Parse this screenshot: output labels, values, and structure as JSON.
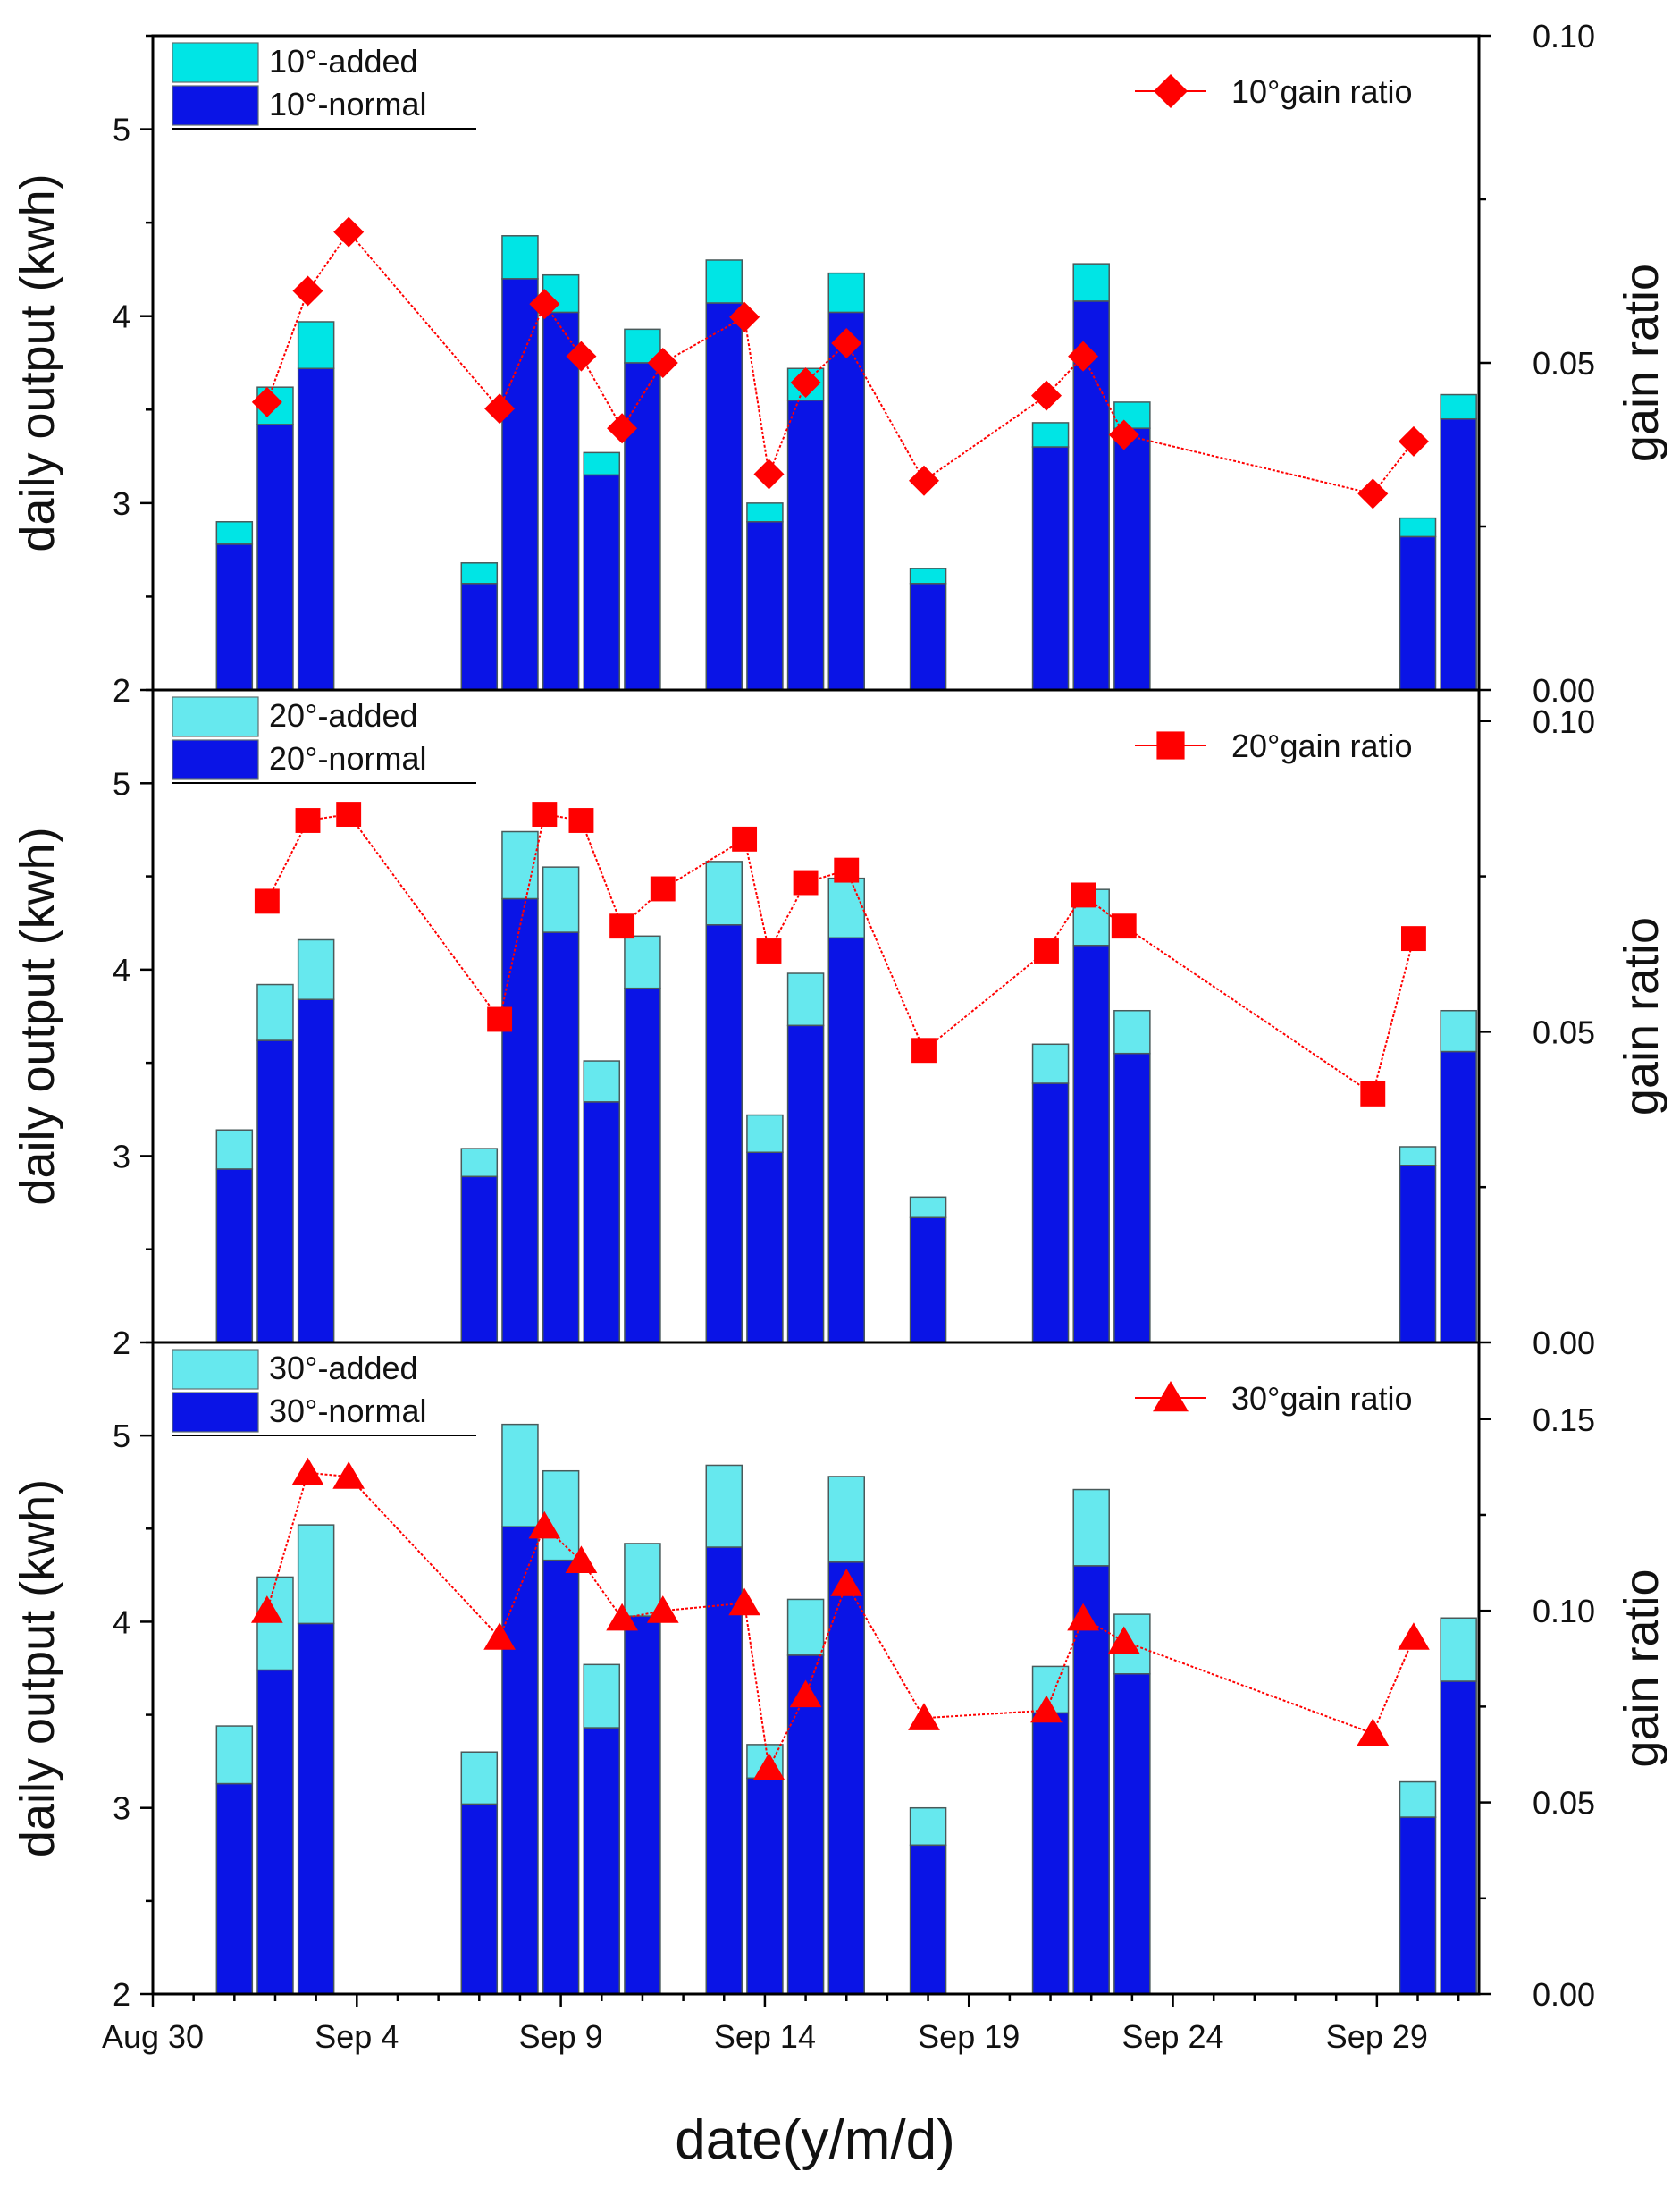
{
  "figure": {
    "xlabel": "date(y/m/d)",
    "x_ticks": [
      {
        "day": 0,
        "label": "Aug 30"
      },
      {
        "day": 5,
        "label": "Sep 4"
      },
      {
        "day": 10,
        "label": "Sep 9"
      },
      {
        "day": 15,
        "label": "Sep 14"
      },
      {
        "day": 20,
        "label": "Sep 19"
      },
      {
        "day": 25,
        "label": "Sep 24"
      },
      {
        "day": 30,
        "label": "Sep 29"
      }
    ],
    "xlim": [
      0,
      32.5
    ],
    "colors": {
      "added_10": "#00e5e5",
      "added": "#66e8ee",
      "normal": "#0a14e6",
      "ratio": "#ff0000",
      "bar_edge": "#4a5a5a"
    }
  },
  "chart_data": [
    {
      "type": "bar",
      "panel": "10°",
      "stacked": true,
      "ylabel": "daily output (kwh)",
      "y2label": "gain ratio",
      "ylim": [
        2,
        5.5
      ],
      "y_ticks": [
        "2",
        "3",
        "4",
        "5"
      ],
      "y2lim": [
        0,
        0.1
      ],
      "y2_ticks": [
        "0.00",
        "0.05",
        "0.10"
      ],
      "legend": {
        "added": "10°-added",
        "normal": "10°-normal",
        "ratio": "10°gain ratio"
      },
      "ratio_marker": "diamond",
      "bars": [
        {
          "day": 2,
          "normal": 2.78,
          "total": 2.9
        },
        {
          "day": 3,
          "normal": 3.42,
          "total": 3.62
        },
        {
          "day": 4,
          "normal": 3.72,
          "total": 3.97
        },
        {
          "day": 8,
          "normal": 2.57,
          "total": 2.68
        },
        {
          "day": 9,
          "normal": 4.2,
          "total": 4.43
        },
        {
          "day": 10,
          "normal": 4.02,
          "total": 4.22
        },
        {
          "day": 11,
          "normal": 3.15,
          "total": 3.27
        },
        {
          "day": 12,
          "normal": 3.75,
          "total": 3.93
        },
        {
          "day": 14,
          "normal": 4.07,
          "total": 4.3
        },
        {
          "day": 15,
          "normal": 2.9,
          "total": 3.0
        },
        {
          "day": 16,
          "normal": 3.55,
          "total": 3.72
        },
        {
          "day": 17,
          "normal": 4.02,
          "total": 4.23
        },
        {
          "day": 19,
          "normal": 2.57,
          "total": 2.65
        },
        {
          "day": 22,
          "normal": 3.3,
          "total": 3.43
        },
        {
          "day": 23,
          "normal": 4.08,
          "total": 4.28
        },
        {
          "day": 24,
          "normal": 3.4,
          "total": 3.54
        },
        {
          "day": 31,
          "normal": 2.82,
          "total": 2.92
        },
        {
          "day": 32,
          "normal": 3.45,
          "total": 3.58
        }
      ],
      "ratio": [
        {
          "day": 2.8,
          "value": 0.044
        },
        {
          "day": 3.8,
          "value": 0.061
        },
        {
          "day": 4.8,
          "value": 0.07
        },
        {
          "day": 8.5,
          "value": 0.043
        },
        {
          "day": 9.6,
          "value": 0.059
        },
        {
          "day": 10.5,
          "value": 0.051
        },
        {
          "day": 11.5,
          "value": 0.04
        },
        {
          "day": 12.5,
          "value": 0.05
        },
        {
          "day": 14.5,
          "value": 0.057
        },
        {
          "day": 15.1,
          "value": 0.033
        },
        {
          "day": 16.0,
          "value": 0.047
        },
        {
          "day": 17.0,
          "value": 0.053
        },
        {
          "day": 18.9,
          "value": 0.032
        },
        {
          "day": 21.9,
          "value": 0.045
        },
        {
          "day": 22.8,
          "value": 0.051
        },
        {
          "day": 23.8,
          "value": 0.039
        },
        {
          "day": 29.9,
          "value": 0.03
        },
        {
          "day": 30.9,
          "value": 0.038
        }
      ]
    },
    {
      "type": "bar",
      "panel": "20°",
      "stacked": true,
      "ylabel": "daily output (kwh)",
      "y2label": "gain ratio",
      "ylim": [
        2,
        5.5
      ],
      "y_ticks": [
        "2",
        "3",
        "4",
        "5"
      ],
      "y2lim": [
        0,
        0.105
      ],
      "y2_ticks": [
        "0.00",
        "0.05",
        "0.10"
      ],
      "legend": {
        "added": "20°-added",
        "normal": "20°-normal",
        "ratio": "20°gain ratio"
      },
      "ratio_marker": "square",
      "bars": [
        {
          "day": 2,
          "normal": 2.93,
          "total": 3.14
        },
        {
          "day": 3,
          "normal": 3.62,
          "total": 3.92
        },
        {
          "day": 4,
          "normal": 3.84,
          "total": 4.16
        },
        {
          "day": 8,
          "normal": 2.89,
          "total": 3.04
        },
        {
          "day": 9,
          "normal": 4.38,
          "total": 4.74
        },
        {
          "day": 10,
          "normal": 4.2,
          "total": 4.55
        },
        {
          "day": 11,
          "normal": 3.29,
          "total": 3.51
        },
        {
          "day": 12,
          "normal": 3.9,
          "total": 4.18
        },
        {
          "day": 14,
          "normal": 4.24,
          "total": 4.58
        },
        {
          "day": 15,
          "normal": 3.02,
          "total": 3.22
        },
        {
          "day": 16,
          "normal": 3.7,
          "total": 3.98
        },
        {
          "day": 17,
          "normal": 4.17,
          "total": 4.49
        },
        {
          "day": 19,
          "normal": 2.67,
          "total": 2.78
        },
        {
          "day": 22,
          "normal": 3.39,
          "total": 3.6
        },
        {
          "day": 23,
          "normal": 4.13,
          "total": 4.43
        },
        {
          "day": 24,
          "normal": 3.55,
          "total": 3.78
        },
        {
          "day": 31,
          "normal": 2.95,
          "total": 3.05
        },
        {
          "day": 32,
          "normal": 3.56,
          "total": 3.78
        }
      ],
      "ratio": [
        {
          "day": 2.8,
          "value": 0.071
        },
        {
          "day": 3.8,
          "value": 0.084
        },
        {
          "day": 4.8,
          "value": 0.085
        },
        {
          "day": 8.5,
          "value": 0.052
        },
        {
          "day": 9.6,
          "value": 0.085
        },
        {
          "day": 10.5,
          "value": 0.084
        },
        {
          "day": 11.5,
          "value": 0.067
        },
        {
          "day": 12.5,
          "value": 0.073
        },
        {
          "day": 14.5,
          "value": 0.081
        },
        {
          "day": 15.1,
          "value": 0.063
        },
        {
          "day": 16.0,
          "value": 0.074
        },
        {
          "day": 17.0,
          "value": 0.076
        },
        {
          "day": 18.9,
          "value": 0.047
        },
        {
          "day": 21.9,
          "value": 0.063
        },
        {
          "day": 22.8,
          "value": 0.072
        },
        {
          "day": 23.8,
          "value": 0.067
        },
        {
          "day": 29.9,
          "value": 0.04
        },
        {
          "day": 30.9,
          "value": 0.065
        }
      ]
    },
    {
      "type": "bar",
      "panel": "30°",
      "stacked": true,
      "ylabel": "daily output (kwh)",
      "y2label": "gain ratio",
      "ylim": [
        2,
        5.5
      ],
      "y_ticks": [
        "2",
        "3",
        "4",
        "5"
      ],
      "y2lim": [
        0,
        0.17
      ],
      "y2_ticks": [
        "0.00",
        "0.05",
        "0.10",
        "0.15"
      ],
      "legend": {
        "added": "30°-added",
        "normal": "30°-normal",
        "ratio": "30°gain ratio"
      },
      "ratio_marker": "triangle",
      "bars": [
        {
          "day": 2,
          "normal": 3.13,
          "total": 3.44
        },
        {
          "day": 3,
          "normal": 3.74,
          "total": 4.24
        },
        {
          "day": 4,
          "normal": 3.99,
          "total": 4.52
        },
        {
          "day": 8,
          "normal": 3.02,
          "total": 3.3
        },
        {
          "day": 9,
          "normal": 4.51,
          "total": 5.06
        },
        {
          "day": 10,
          "normal": 4.33,
          "total": 4.81
        },
        {
          "day": 11,
          "normal": 3.43,
          "total": 3.77
        },
        {
          "day": 12,
          "normal": 4.03,
          "total": 4.42
        },
        {
          "day": 14,
          "normal": 4.4,
          "total": 4.84
        },
        {
          "day": 15,
          "normal": 3.16,
          "total": 3.34
        },
        {
          "day": 16,
          "normal": 3.82,
          "total": 4.12
        },
        {
          "day": 17,
          "normal": 4.32,
          "total": 4.78
        },
        {
          "day": 19,
          "normal": 2.8,
          "total": 3.0
        },
        {
          "day": 22,
          "normal": 3.51,
          "total": 3.76
        },
        {
          "day": 23,
          "normal": 4.3,
          "total": 4.71
        },
        {
          "day": 24,
          "normal": 3.72,
          "total": 4.04
        },
        {
          "day": 31,
          "normal": 2.95,
          "total": 3.14
        },
        {
          "day": 32,
          "normal": 3.68,
          "total": 4.02
        }
      ],
      "ratio": [
        {
          "day": 2.8,
          "value": 0.1
        },
        {
          "day": 3.8,
          "value": 0.136
        },
        {
          "day": 4.8,
          "value": 0.135
        },
        {
          "day": 8.5,
          "value": 0.093
        },
        {
          "day": 9.6,
          "value": 0.122
        },
        {
          "day": 10.5,
          "value": 0.113
        },
        {
          "day": 11.5,
          "value": 0.098
        },
        {
          "day": 12.5,
          "value": 0.1
        },
        {
          "day": 14.5,
          "value": 0.102
        },
        {
          "day": 15.1,
          "value": 0.059
        },
        {
          "day": 16.0,
          "value": 0.078
        },
        {
          "day": 17.0,
          "value": 0.107
        },
        {
          "day": 18.9,
          "value": 0.072
        },
        {
          "day": 21.9,
          "value": 0.074
        },
        {
          "day": 22.8,
          "value": 0.098
        },
        {
          "day": 23.8,
          "value": 0.092
        },
        {
          "day": 29.9,
          "value": 0.068
        },
        {
          "day": 30.9,
          "value": 0.093
        }
      ]
    }
  ]
}
